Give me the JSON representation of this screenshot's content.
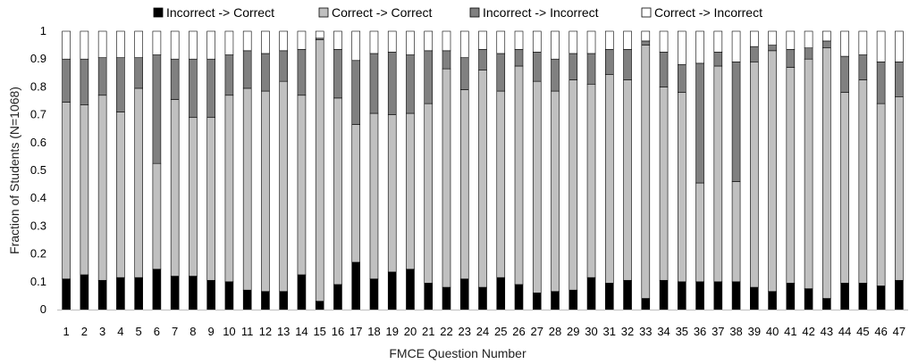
{
  "chart_data": {
    "type": "bar",
    "stacked": true,
    "xlabel": "FMCE Question Number",
    "ylabel": "Fraction of Students (N=1068)",
    "ylim": [
      0,
      1
    ],
    "yticks": [
      "0",
      "0.1",
      "0.2",
      "0.3",
      "0.4",
      "0.5",
      "0.6",
      "0.7",
      "0.8",
      "0.9",
      "1"
    ],
    "grid": false,
    "legend_position": "top",
    "categories": [
      "1",
      "2",
      "3",
      "4",
      "5",
      "6",
      "7",
      "8",
      "9",
      "10",
      "11",
      "12",
      "13",
      "14",
      "15",
      "16",
      "17",
      "18",
      "19",
      "20",
      "21",
      "22",
      "23",
      "24",
      "25",
      "26",
      "27",
      "28",
      "29",
      "30",
      "31",
      "32",
      "33",
      "34",
      "35",
      "36",
      "37",
      "38",
      "39",
      "40",
      "41",
      "42",
      "43",
      "44",
      "45",
      "46",
      "47"
    ],
    "series": [
      {
        "name": "Incorrect -> Correct",
        "color": "#000000",
        "values": [
          0.11,
          0.125,
          0.105,
          0.115,
          0.115,
          0.145,
          0.12,
          0.12,
          0.105,
          0.1,
          0.07,
          0.065,
          0.065,
          0.125,
          0.03,
          0.09,
          0.17,
          0.11,
          0.135,
          0.145,
          0.095,
          0.08,
          0.11,
          0.08,
          0.115,
          0.09,
          0.06,
          0.065,
          0.07,
          0.115,
          0.095,
          0.105,
          0.04,
          0.105,
          0.1,
          0.1,
          0.1,
          0.1,
          0.08,
          0.065,
          0.095,
          0.075,
          0.04,
          0.095,
          0.095,
          0.085,
          0.105
        ]
      },
      {
        "name": "Correct -> Correct",
        "color": "#c0c0c0",
        "values": [
          0.635,
          0.61,
          0.665,
          0.595,
          0.68,
          0.38,
          0.635,
          0.57,
          0.585,
          0.67,
          0.725,
          0.72,
          0.755,
          0.645,
          0.94,
          0.67,
          0.495,
          0.595,
          0.565,
          0.56,
          0.645,
          0.785,
          0.68,
          0.78,
          0.67,
          0.785,
          0.76,
          0.72,
          0.755,
          0.695,
          0.75,
          0.72,
          0.91,
          0.695,
          0.68,
          0.355,
          0.775,
          0.36,
          0.81,
          0.865,
          0.775,
          0.825,
          0.9,
          0.685,
          0.73,
          0.655,
          0.66
        ]
      },
      {
        "name": "Incorrect -> Incorrect",
        "color": "#808080",
        "values": [
          0.155,
          0.165,
          0.135,
          0.195,
          0.11,
          0.39,
          0.145,
          0.21,
          0.21,
          0.145,
          0.135,
          0.135,
          0.11,
          0.165,
          0.005,
          0.175,
          0.23,
          0.215,
          0.225,
          0.21,
          0.19,
          0.065,
          0.115,
          0.075,
          0.135,
          0.06,
          0.105,
          0.115,
          0.095,
          0.11,
          0.09,
          0.11,
          0.015,
          0.125,
          0.1,
          0.43,
          0.05,
          0.43,
          0.055,
          0.02,
          0.065,
          0.04,
          0.025,
          0.13,
          0.09,
          0.15,
          0.125
        ]
      },
      {
        "name": "Correct -> Incorrect",
        "color": "#ffffff",
        "values": [
          0.1,
          0.1,
          0.095,
          0.095,
          0.095,
          0.085,
          0.1,
          0.1,
          0.1,
          0.085,
          0.07,
          0.08,
          0.07,
          0.065,
          0.025,
          0.065,
          0.105,
          0.08,
          0.075,
          0.085,
          0.07,
          0.07,
          0.095,
          0.065,
          0.08,
          0.065,
          0.075,
          0.1,
          0.08,
          0.08,
          0.065,
          0.065,
          0.035,
          0.075,
          0.12,
          0.115,
          0.075,
          0.11,
          0.055,
          0.05,
          0.065,
          0.06,
          0.035,
          0.09,
          0.085,
          0.11,
          0.11
        ]
      }
    ]
  }
}
